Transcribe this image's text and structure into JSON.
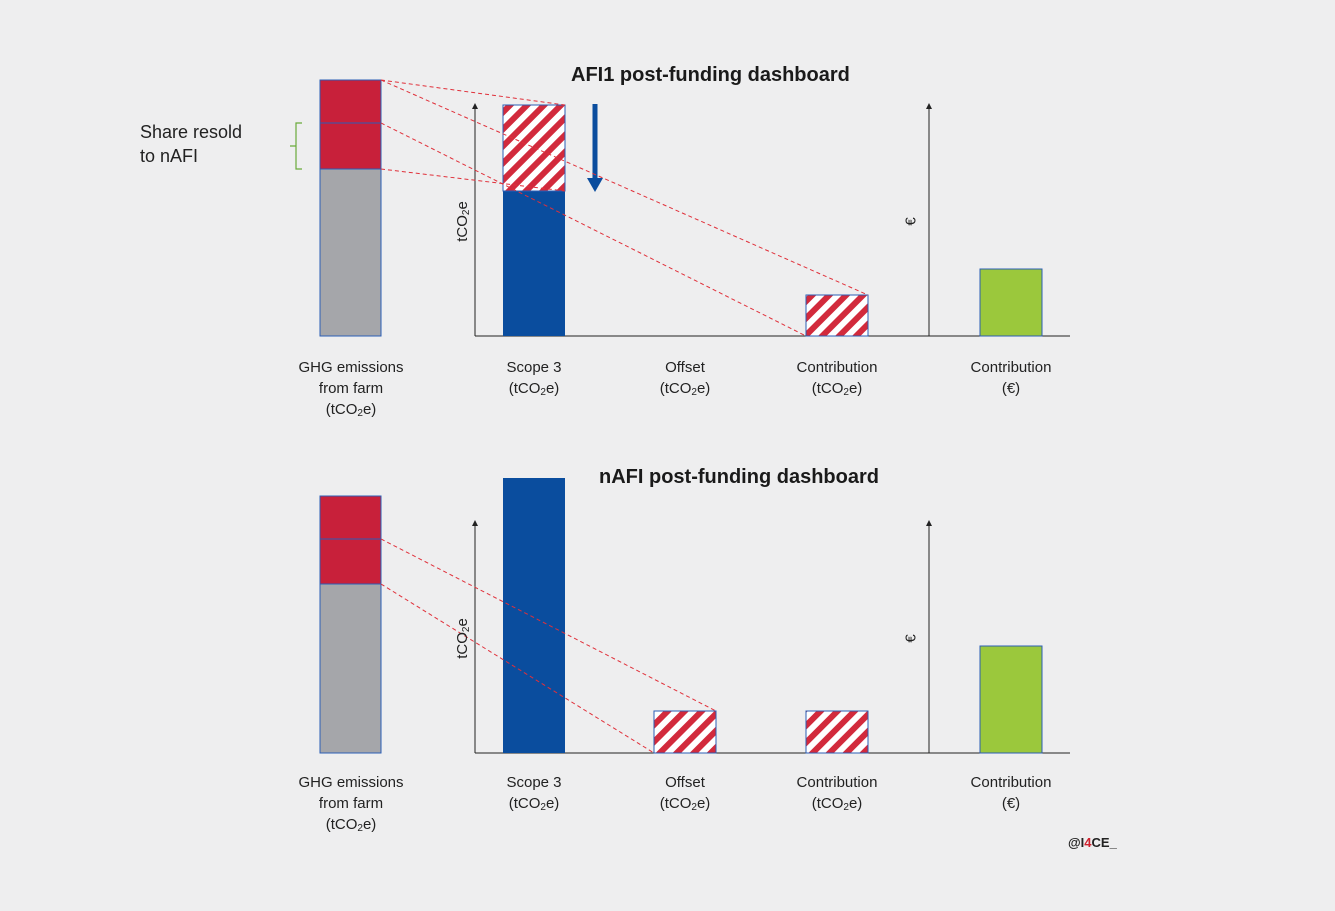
{
  "colors": {
    "background": "#eeeeef",
    "emission_red": "#c8203a",
    "emission_grey": "#a5a6aa",
    "scope_blue": "#0a4d9e",
    "hatch_red": "#d22a3c",
    "contribution_green": "#9bc83c",
    "link_red": "#e0303a",
    "brace_green": "#6aaa3a"
  },
  "share_label": {
    "line1": "Share resold",
    "line2": "to nAFI"
  },
  "credit": {
    "prefix": "@I",
    "accent": "4",
    "suffix": "CE_"
  },
  "panels": [
    {
      "title": "AFI1 post-funding dashboard",
      "y_axis_label": "tCO",
      "y_axis_label_sub": "2",
      "y_axis_label_end": "e",
      "money_axis_label": "€",
      "farm_label": {
        "l1": "GHG emissions",
        "l2": "from farm",
        "l3a": "(tCO",
        "l3sub": "2",
        "l3b": "e)"
      },
      "categories": [
        {
          "l1": "Scope 3",
          "l2a": "(tCO",
          "l2sub": "2",
          "l2b": "e)"
        },
        {
          "l1": "Offset",
          "l2a": "(tCO",
          "l2sub": "2",
          "l2b": "e)"
        },
        {
          "l1": "Contribution",
          "l2a": "(tCO",
          "l2sub": "2",
          "l2b": "e)"
        },
        {
          "l1": "Contribution",
          "l2a": "(€)",
          "l2sub": "",
          "l2b": ""
        }
      ]
    },
    {
      "title": "nAFI post-funding dashboard",
      "y_axis_label": "tCO",
      "y_axis_label_sub": "2",
      "y_axis_label_end": "e",
      "money_axis_label": "€",
      "farm_label": {
        "l1": "GHG emissions",
        "l2": "from farm",
        "l3a": "(tCO",
        "l3sub": "2",
        "l3b": "e)"
      },
      "categories": [
        {
          "l1": "Scope 3",
          "l2a": "(tCO",
          "l2sub": "2",
          "l2b": "e)"
        },
        {
          "l1": "Offset",
          "l2a": "(tCO",
          "l2sub": "2",
          "l2b": "e)"
        },
        {
          "l1": "Contribution",
          "l2a": "(tCO",
          "l2sub": "2",
          "l2b": "e)"
        },
        {
          "l1": "Contribution",
          "l2a": "(€)",
          "l2sub": "",
          "l2b": ""
        }
      ]
    }
  ]
}
